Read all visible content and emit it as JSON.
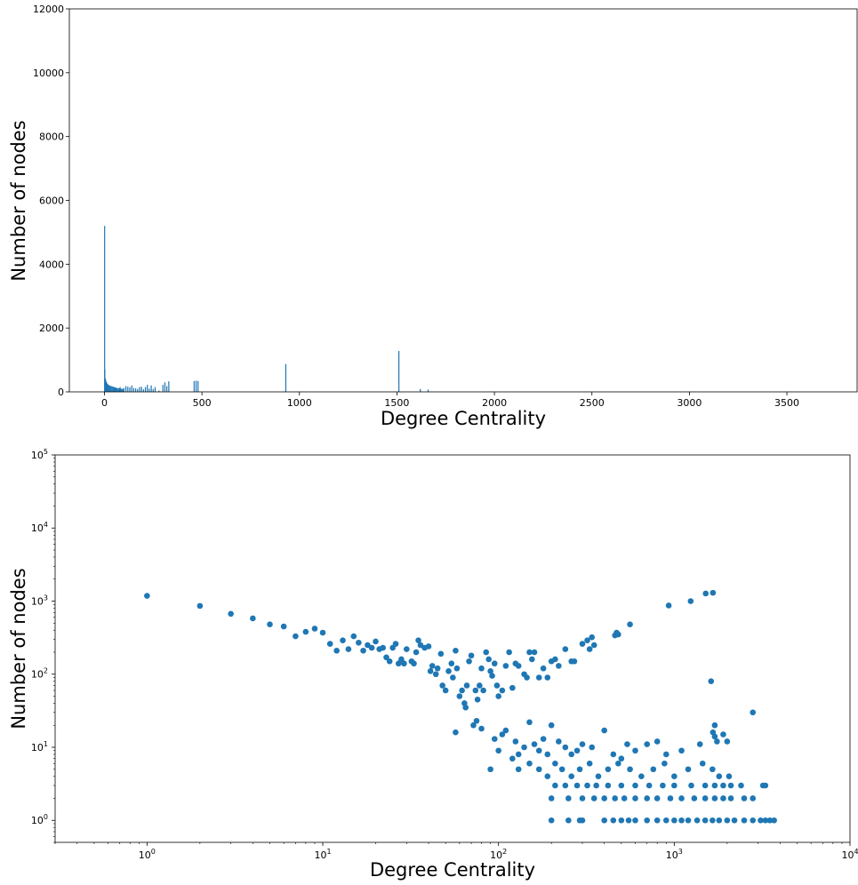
{
  "colors": {
    "series": "#1f77b4",
    "axis": "#000000"
  },
  "chart_data": [
    {
      "type": "bar",
      "xlabel": "Degree Centrality",
      "ylabel": "Number of nodes",
      "xlim": [
        -180,
        3860
      ],
      "ylim": [
        0,
        12000
      ],
      "xticks": [
        0,
        500,
        1000,
        1500,
        2000,
        2500,
        3000,
        3500
      ],
      "yticks": [
        0,
        2000,
        4000,
        6000,
        8000,
        10000,
        12000
      ],
      "xtick_labels": [
        "0",
        "500",
        "1000",
        "1500",
        "2000",
        "2500",
        "3000",
        "3500"
      ],
      "ytick_labels": [
        "0",
        "2000",
        "4000",
        "6000",
        "8000",
        "10000",
        "12000"
      ],
      "grid": false,
      "x": [
        1,
        2,
        4,
        6,
        8,
        10,
        12,
        15,
        18,
        22,
        26,
        30,
        35,
        40,
        45,
        50,
        55,
        60,
        65,
        70,
        75,
        80,
        85,
        90,
        95,
        100,
        110,
        120,
        130,
        140,
        150,
        160,
        170,
        180,
        190,
        200,
        210,
        220,
        230,
        240,
        250,
        260,
        280,
        300,
        310,
        320,
        330,
        460,
        470,
        480,
        930,
        1510,
        1620,
        1660
      ],
      "values": [
        5200,
        700,
        420,
        380,
        330,
        300,
        280,
        250,
        230,
        210,
        200,
        190,
        180,
        170,
        160,
        150,
        140,
        130,
        120,
        115,
        110,
        150,
        100,
        95,
        90,
        120,
        180,
        160,
        140,
        200,
        120,
        110,
        90,
        150,
        160,
        80,
        150,
        220,
        100,
        200,
        90,
        150,
        40,
        220,
        300,
        180,
        330,
        340,
        350,
        340,
        870,
        1280,
        90,
        70
      ]
    },
    {
      "type": "scatter",
      "xlabel": "Degree Centrality",
      "ylabel": "Number of nodes",
      "xscale": "log",
      "yscale": "log",
      "xlim": [
        0.3,
        10000
      ],
      "ylim": [
        0.5,
        100000
      ],
      "xticks": [
        1,
        10,
        100,
        1000,
        10000
      ],
      "yticks": [
        1,
        10,
        100,
        1000,
        10000,
        100000
      ],
      "xtick_labels": [
        "10^0",
        "10^1",
        "10^2",
        "10^3",
        "10^4"
      ],
      "ytick_labels": [
        "10^0",
        "10^1",
        "10^2",
        "10^3",
        "10^4",
        "10^5"
      ],
      "grid": false,
      "points": [
        [
          1,
          1180
        ],
        [
          2,
          860
        ],
        [
          3,
          670
        ],
        [
          4,
          580
        ],
        [
          5,
          480
        ],
        [
          6,
          450
        ],
        [
          7,
          330
        ],
        [
          8,
          380
        ],
        [
          9,
          420
        ],
        [
          10,
          370
        ],
        [
          11,
          260
        ],
        [
          12,
          210
        ],
        [
          13,
          290
        ],
        [
          14,
          220
        ],
        [
          15,
          330
        ],
        [
          16,
          270
        ],
        [
          17,
          210
        ],
        [
          18,
          250
        ],
        [
          19,
          230
        ],
        [
          20,
          280
        ],
        [
          21,
          220
        ],
        [
          22,
          230
        ],
        [
          23,
          170
        ],
        [
          24,
          150
        ],
        [
          25,
          230
        ],
        [
          26,
          260
        ],
        [
          27,
          140
        ],
        [
          28,
          160
        ],
        [
          29,
          140
        ],
        [
          30,
          220
        ],
        [
          32,
          150
        ],
        [
          33,
          140
        ],
        [
          34,
          200
        ],
        [
          35,
          290
        ],
        [
          36,
          250
        ],
        [
          38,
          230
        ],
        [
          40,
          240
        ],
        [
          41,
          110
        ],
        [
          42,
          130
        ],
        [
          44,
          100
        ],
        [
          45,
          120
        ],
        [
          47,
          190
        ],
        [
          48,
          70
        ],
        [
          50,
          60
        ],
        [
          52,
          110
        ],
        [
          54,
          140
        ],
        [
          55,
          90
        ],
        [
          57,
          210
        ],
        [
          58,
          120
        ],
        [
          60,
          50
        ],
        [
          62,
          60
        ],
        [
          64,
          40
        ],
        [
          65,
          35
        ],
        [
          66,
          70
        ],
        [
          68,
          150
        ],
        [
          70,
          180
        ],
        [
          72,
          20
        ],
        [
          74,
          60
        ],
        [
          76,
          45
        ],
        [
          78,
          70
        ],
        [
          80,
          120
        ],
        [
          82,
          60
        ],
        [
          85,
          200
        ],
        [
          88,
          160
        ],
        [
          90,
          110
        ],
        [
          92,
          95
        ],
        [
          95,
          140
        ],
        [
          98,
          70
        ],
        [
          100,
          50
        ],
        [
          105,
          60
        ],
        [
          110,
          130
        ],
        [
          115,
          200
        ],
        [
          120,
          65
        ],
        [
          125,
          140
        ],
        [
          130,
          130
        ],
        [
          140,
          100
        ],
        [
          145,
          90
        ],
        [
          150,
          200
        ],
        [
          155,
          160
        ],
        [
          160,
          200
        ],
        [
          170,
          90
        ],
        [
          180,
          120
        ],
        [
          190,
          90
        ],
        [
          200,
          150
        ],
        [
          210,
          160
        ],
        [
          220,
          130
        ],
        [
          240,
          220
        ],
        [
          260,
          150
        ],
        [
          270,
          150
        ],
        [
          300,
          260
        ],
        [
          320,
          290
        ],
        [
          330,
          220
        ],
        [
          340,
          320
        ],
        [
          350,
          250
        ],
        [
          460,
          340
        ],
        [
          470,
          370
        ],
        [
          480,
          350
        ],
        [
          560,
          480
        ],
        [
          930,
          870
        ],
        [
          1240,
          1000
        ],
        [
          1510,
          1270
        ],
        [
          1620,
          80
        ],
        [
          1660,
          1300
        ],
        [
          57,
          16
        ],
        [
          75,
          23
        ],
        [
          80,
          18
        ],
        [
          90,
          5
        ],
        [
          95,
          13
        ],
        [
          100,
          9
        ],
        [
          105,
          15
        ],
        [
          110,
          17
        ],
        [
          120,
          7
        ],
        [
          125,
          12
        ],
        [
          130,
          8
        ],
        [
          140,
          10
        ],
        [
          150,
          22
        ],
        [
          160,
          11
        ],
        [
          170,
          9
        ],
        [
          180,
          13
        ],
        [
          190,
          8
        ],
        [
          200,
          20
        ],
        [
          220,
          12
        ],
        [
          240,
          10
        ],
        [
          260,
          8
        ],
        [
          280,
          9
        ],
        [
          300,
          11
        ],
        [
          340,
          10
        ],
        [
          400,
          17
        ],
        [
          450,
          8
        ],
        [
          500,
          7
        ],
        [
          540,
          11
        ],
        [
          600,
          9
        ],
        [
          700,
          11
        ],
        [
          800,
          12
        ],
        [
          900,
          8
        ],
        [
          1100,
          9
        ],
        [
          1400,
          11
        ],
        [
          1700,
          20
        ],
        [
          1900,
          15
        ],
        [
          2000,
          12
        ],
        [
          1660,
          16
        ],
        [
          1700,
          14
        ],
        [
          1750,
          12
        ],
        [
          2800,
          30
        ],
        [
          130,
          5
        ],
        [
          150,
          6
        ],
        [
          170,
          5
        ],
        [
          190,
          4
        ],
        [
          210,
          6
        ],
        [
          230,
          5
        ],
        [
          260,
          4
        ],
        [
          290,
          5
        ],
        [
          330,
          6
        ],
        [
          370,
          4
        ],
        [
          420,
          5
        ],
        [
          480,
          6
        ],
        [
          560,
          5
        ],
        [
          650,
          4
        ],
        [
          760,
          5
        ],
        [
          880,
          6
        ],
        [
          1000,
          4
        ],
        [
          1200,
          5
        ],
        [
          1450,
          6
        ],
        [
          1650,
          5
        ],
        [
          1800,
          4
        ],
        [
          2050,
          4
        ],
        [
          210,
          3
        ],
        [
          240,
          3
        ],
        [
          280,
          3
        ],
        [
          320,
          3
        ],
        [
          360,
          3
        ],
        [
          420,
          3
        ],
        [
          500,
          3
        ],
        [
          600,
          3
        ],
        [
          720,
          3
        ],
        [
          860,
          3
        ],
        [
          1000,
          3
        ],
        [
          1250,
          3
        ],
        [
          1500,
          3
        ],
        [
          1700,
          3
        ],
        [
          1900,
          3
        ],
        [
          2100,
          3
        ],
        [
          2400,
          3
        ],
        [
          3200,
          3
        ],
        [
          3300,
          3
        ],
        [
          200,
          2
        ],
        [
          250,
          2
        ],
        [
          300,
          2
        ],
        [
          350,
          2
        ],
        [
          400,
          2
        ],
        [
          460,
          2
        ],
        [
          520,
          2
        ],
        [
          600,
          2
        ],
        [
          700,
          2
        ],
        [
          800,
          2
        ],
        [
          950,
          2
        ],
        [
          1100,
          2
        ],
        [
          1300,
          2
        ],
        [
          1500,
          2
        ],
        [
          1700,
          2
        ],
        [
          1900,
          2
        ],
        [
          2100,
          2
        ],
        [
          2500,
          2
        ],
        [
          2800,
          2
        ],
        [
          200,
          1
        ],
        [
          250,
          1
        ],
        [
          290,
          1
        ],
        [
          300,
          1
        ],
        [
          400,
          1
        ],
        [
          450,
          1
        ],
        [
          500,
          1
        ],
        [
          550,
          1
        ],
        [
          600,
          1
        ],
        [
          700,
          1
        ],
        [
          800,
          1
        ],
        [
          900,
          1
        ],
        [
          1000,
          1
        ],
        [
          1100,
          1
        ],
        [
          1200,
          1
        ],
        [
          1350,
          1
        ],
        [
          1500,
          1
        ],
        [
          1650,
          1
        ],
        [
          1800,
          1
        ],
        [
          2000,
          1
        ],
        [
          2200,
          1
        ],
        [
          2500,
          1
        ],
        [
          2800,
          1
        ],
        [
          3100,
          1
        ],
        [
          3300,
          1
        ],
        [
          3500,
          1
        ],
        [
          3700,
          1
        ]
      ]
    }
  ]
}
